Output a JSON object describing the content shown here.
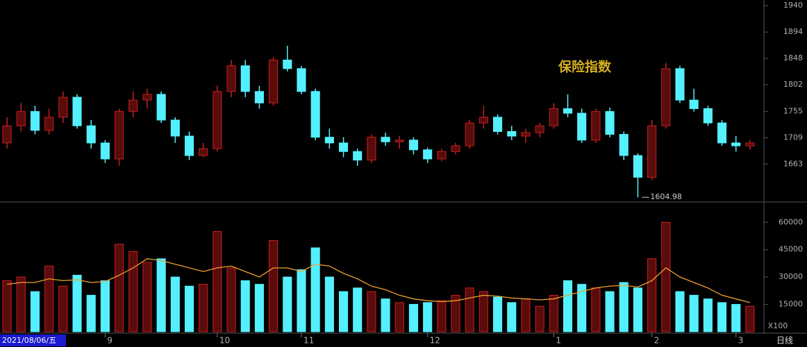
{
  "chart_data": [
    {
      "type": "candlestick",
      "title": "保险指数",
      "annotation": "1604.98",
      "cursor_date": "2021/08/06/五",
      "period": "日线",
      "up_color": "#c81e1e",
      "down_color": "#54f0ff",
      "grid": false,
      "ylim": [
        1598,
        1950
      ],
      "yticks": [
        1663,
        1709,
        1755,
        1802,
        1848,
        1894,
        1940
      ],
      "categories": [
        null,
        null,
        null,
        null,
        null,
        null,
        null,
        "9",
        null,
        null,
        null,
        null,
        null,
        null,
        null,
        "10",
        null,
        null,
        null,
        null,
        null,
        "11",
        null,
        null,
        null,
        null,
        null,
        null,
        null,
        null,
        "12",
        null,
        null,
        null,
        null,
        null,
        null,
        null,
        null,
        "1",
        null,
        null,
        null,
        null,
        null,
        null,
        "2",
        null,
        null,
        null,
        null,
        null,
        "3",
        null
      ],
      "ohlc": [
        [
          1700,
          1745,
          1690,
          1730
        ],
        [
          1730,
          1770,
          1720,
          1755
        ],
        [
          1755,
          1765,
          1715,
          1722
        ],
        [
          1722,
          1760,
          1715,
          1745
        ],
        [
          1745,
          1790,
          1735,
          1780
        ],
        [
          1780,
          1785,
          1725,
          1730
        ],
        [
          1730,
          1740,
          1690,
          1700
        ],
        [
          1700,
          1705,
          1665,
          1672
        ],
        [
          1672,
          1760,
          1660,
          1755
        ],
        [
          1755,
          1790,
          1745,
          1775
        ],
        [
          1775,
          1795,
          1760,
          1785
        ],
        [
          1785,
          1790,
          1735,
          1740
        ],
        [
          1740,
          1745,
          1700,
          1712
        ],
        [
          1712,
          1720,
          1670,
          1678
        ],
        [
          1678,
          1700,
          1675,
          1690
        ],
        [
          1690,
          1800,
          1685,
          1790
        ],
        [
          1790,
          1845,
          1780,
          1835
        ],
        [
          1835,
          1845,
          1780,
          1790
        ],
        [
          1790,
          1800,
          1760,
          1770
        ],
        [
          1770,
          1850,
          1765,
          1845
        ],
        [
          1845,
          1870,
          1825,
          1830
        ],
        [
          1830,
          1835,
          1785,
          1790
        ],
        [
          1790,
          1795,
          1705,
          1710
        ],
        [
          1710,
          1725,
          1690,
          1700
        ],
        [
          1700,
          1710,
          1675,
          1685
        ],
        [
          1685,
          1690,
          1660,
          1670
        ],
        [
          1670,
          1715,
          1665,
          1710
        ],
        [
          1710,
          1718,
          1695,
          1702
        ],
        [
          1702,
          1712,
          1690,
          1705
        ],
        [
          1705,
          1710,
          1680,
          1688
        ],
        [
          1688,
          1692,
          1665,
          1672
        ],
        [
          1672,
          1690,
          1668,
          1685
        ],
        [
          1685,
          1700,
          1680,
          1695
        ],
        [
          1695,
          1740,
          1690,
          1735
        ],
        [
          1735,
          1765,
          1725,
          1745
        ],
        [
          1745,
          1750,
          1715,
          1720
        ],
        [
          1720,
          1730,
          1705,
          1712
        ],
        [
          1712,
          1725,
          1700,
          1718
        ],
        [
          1718,
          1735,
          1710,
          1730
        ],
        [
          1730,
          1770,
          1725,
          1760
        ],
        [
          1760,
          1785,
          1745,
          1752
        ],
        [
          1752,
          1760,
          1700,
          1705
        ],
        [
          1705,
          1760,
          1700,
          1755
        ],
        [
          1755,
          1762,
          1710,
          1715
        ],
        [
          1715,
          1720,
          1670,
          1678
        ],
        [
          1678,
          1682,
          1604.98,
          1640
        ],
        [
          1640,
          1740,
          1635,
          1730
        ],
        [
          1730,
          1840,
          1725,
          1830
        ],
        [
          1830,
          1835,
          1770,
          1775
        ],
        [
          1775,
          1795,
          1755,
          1760
        ],
        [
          1760,
          1765,
          1730,
          1735
        ],
        [
          1735,
          1740,
          1695,
          1700
        ],
        [
          1700,
          1712,
          1685,
          1695
        ],
        [
          1695,
          1705,
          1688,
          1700
        ]
      ]
    },
    {
      "type": "volume",
      "unit_label": "X100",
      "ylim": [
        0,
        70000
      ],
      "yticks": [
        15000,
        30000,
        45000,
        60000
      ],
      "values": [
        28000,
        30000,
        22000,
        36000,
        25000,
        31000,
        20000,
        28000,
        48000,
        44000,
        38000,
        40000,
        30000,
        25000,
        26000,
        55000,
        35000,
        28000,
        26000,
        50000,
        30000,
        34000,
        46000,
        30000,
        22000,
        24000,
        22000,
        18000,
        16000,
        15000,
        16000,
        17000,
        20000,
        24000,
        22000,
        19000,
        16000,
        18000,
        14000,
        20000,
        28000,
        26000,
        24000,
        22000,
        27000,
        24000,
        40000,
        60000,
        22000,
        20000,
        18000,
        16000,
        15000,
        14000
      ],
      "lines": [
        {
          "color": "#f0a030",
          "values": [
            26000,
            27000,
            27000,
            29000,
            28000,
            28500,
            27000,
            27500,
            31000,
            35000,
            40000,
            39000,
            37000,
            35000,
            33000,
            35000,
            36000,
            33000,
            30000,
            35000,
            35000,
            33000,
            37000,
            36000,
            32000,
            29000,
            25000,
            23000,
            20000,
            18000,
            17000,
            16500,
            17000,
            18500,
            20000,
            19500,
            18500,
            18000,
            17500,
            18000,
            20000,
            22000,
            24000,
            25000,
            25500,
            24500,
            28000,
            35000,
            30000,
            27000,
            24000,
            20000,
            18000,
            16000
          ]
        }
      ]
    }
  ]
}
